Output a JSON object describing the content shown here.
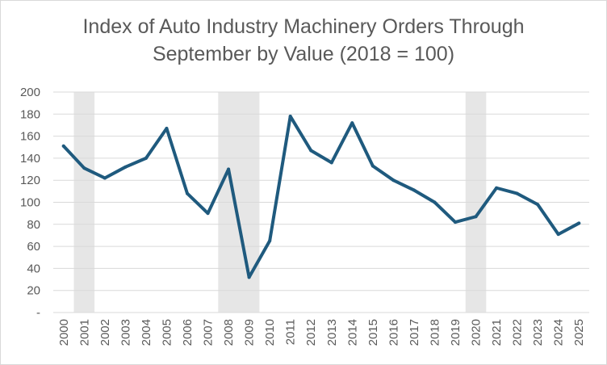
{
  "chart_data": {
    "type": "line",
    "title_line1": "Index of Auto Industry Machinery Orders Through",
    "title_line2": "September by Value (2018 = 100)",
    "xlabel": "",
    "ylabel": "",
    "categories": [
      "2000",
      "2001",
      "2002",
      "2003",
      "2004",
      "2005",
      "2006",
      "2007",
      "2008",
      "2009",
      "2010",
      "2011",
      "2012",
      "2013",
      "2014",
      "2015",
      "2016",
      "2017",
      "2018",
      "2019",
      "2020",
      "2021",
      "2022",
      "2023",
      "2024",
      "2025"
    ],
    "series": [
      {
        "name": "Index",
        "values": [
          151,
          131,
          122,
          132,
          140,
          167,
          108,
          90,
          130,
          32,
          65,
          178,
          147,
          136,
          172,
          133,
          120,
          111,
          100,
          82,
          87,
          113,
          108,
          98,
          71,
          81
        ],
        "color": "#1f5a7e"
      }
    ],
    "recession_shading": [
      {
        "start": 0.5,
        "end": 1.5
      },
      {
        "start": 7.5,
        "end": 9.5
      },
      {
        "start": 19.5,
        "end": 20.5
      }
    ],
    "shading_color": "#e6e6e6",
    "ylim": [
      0,
      200
    ],
    "yticks": [
      0,
      20,
      40,
      60,
      80,
      100,
      120,
      140,
      160,
      180,
      200
    ],
    "ytick_labels": [
      "-",
      "20",
      "40",
      "60",
      "80",
      "100",
      "120",
      "140",
      "160",
      "180",
      "200"
    ],
    "grid": true,
    "grid_color": "#d9d9d9",
    "legend": "none"
  }
}
